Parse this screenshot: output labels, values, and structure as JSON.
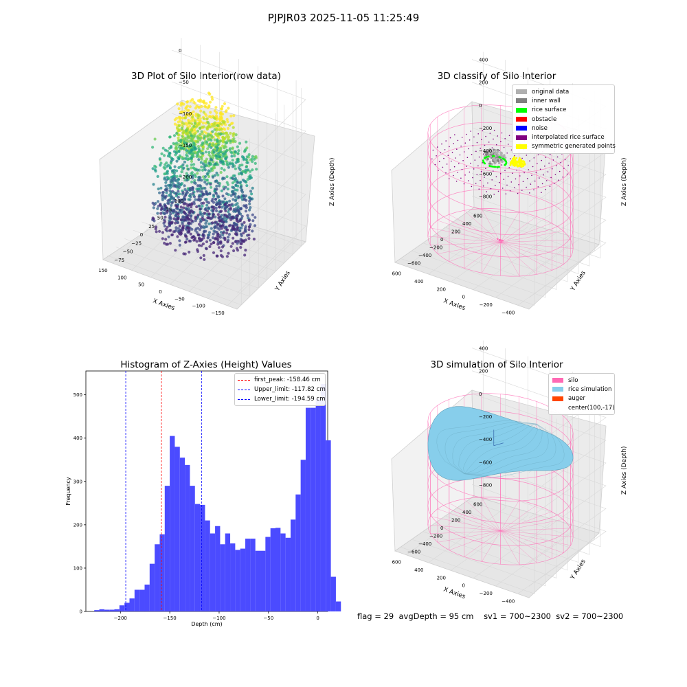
{
  "suptitle": "PJPJR03 2025-11-05 11:25:49",
  "colors": {
    "silo_wire": "#ff69b4",
    "rice_sim": "#87ceeb",
    "hist_bar": "#4b4bff",
    "classify_original": "#b0b0b0",
    "classify_inner_wall": "#808080",
    "classify_rice_surface": "#00ff00",
    "classify_obstacle": "#ff0000",
    "classify_noise": "#0000ff",
    "classify_interp": "#800080",
    "classify_symmetric": "#ffff00",
    "auger": "#ff4500"
  },
  "chart_data": [
    {
      "type": "scatter",
      "projection": "3d",
      "title": "3D Plot of Silo Interior(row data)",
      "xlabel": "X Axies",
      "ylabel": "Y Axies",
      "zlabel": "Z Axies (Depth)",
      "xticks": [
        "−150",
        "−100",
        "−50",
        "0",
        "50",
        "100",
        "150"
      ],
      "yticks": [
        "−75",
        "−50",
        "−25",
        "0",
        "25",
        "50",
        "75",
        "100"
      ],
      "zticks": [
        "−200",
        "−150",
        "−100",
        "−50",
        "0"
      ],
      "xlim": [
        -170,
        160
      ],
      "ylim": [
        -85,
        115
      ],
      "zlim": [
        -225,
        5
      ],
      "colormap": "viridis"
    },
    {
      "type": "scatter",
      "projection": "3d",
      "title": "3D classify of Silo Interior",
      "xlabel": "X Axies",
      "ylabel": "Y Axies",
      "zlabel": "Z Axies (Depth)",
      "xticks": [
        "−400",
        "−200",
        "0",
        "200",
        "400",
        "600"
      ],
      "yticks": [
        "−600",
        "−400",
        "−200",
        "0",
        "200",
        "400",
        "600"
      ],
      "zticks": [
        "−800",
        "−600",
        "−400",
        "−200",
        "0",
        "200",
        "400"
      ],
      "xlim": [
        -500,
        700
      ],
      "ylim": [
        -650,
        650
      ],
      "zlim": [
        -900,
        450
      ],
      "legend_position": "top-right",
      "legend": [
        {
          "label": "original data",
          "color": "#b0b0b0"
        },
        {
          "label": "inner wall",
          "color": "#808080"
        },
        {
          "label": "rice surface",
          "color": "#00ff00"
        },
        {
          "label": "obstacle",
          "color": "#ff0000"
        },
        {
          "label": "noise",
          "color": "#0000ff"
        },
        {
          "label": "interpolated rice surface",
          "color": "#800080"
        },
        {
          "label": "symmetric generated points",
          "color": "#ffff00"
        }
      ]
    },
    {
      "type": "bar",
      "subtype": "histogram",
      "title": "Histogram of Z-Axies (Height) Values",
      "xlabel": "Depth (cm)",
      "ylabel": "Frequency",
      "xlim": [
        -235,
        10
      ],
      "ylim": [
        0,
        555
      ],
      "xticks": [
        -200,
        -150,
        -100,
        -50,
        0
      ],
      "yticks": [
        0,
        100,
        200,
        300,
        400,
        500
      ],
      "bin_start": -226.5,
      "bin_width": 5.1,
      "values": [
        3,
        5,
        4,
        4,
        5,
        14,
        20,
        30,
        50,
        50,
        62,
        110,
        155,
        178,
        290,
        405,
        380,
        355,
        338,
        290,
        248,
        246,
        210,
        180,
        197,
        155,
        180,
        157,
        142,
        145,
        168,
        168,
        140,
        140,
        172,
        192,
        193,
        180,
        170,
        212,
        270,
        350,
        470,
        470,
        490,
        525,
        395,
        80,
        23
      ],
      "legend_position": "top-right",
      "vlines": [
        {
          "label": "first_peak: -158.46 cm",
          "x": -158.46,
          "color": "#ff0000"
        },
        {
          "label": "Upper_limit: -117.82 cm",
          "x": -117.82,
          "color": "#0000ff"
        },
        {
          "label": "Lower_limit: -194.59 cm",
          "x": -194.59,
          "color": "#0000ff"
        }
      ]
    },
    {
      "type": "area",
      "projection": "3d",
      "title": "3D simulation of Silo Interior",
      "xlabel": "X Axies",
      "ylabel": "Y Axies",
      "zlabel": "Z Axies (Depth)",
      "xticks": [
        "−400",
        "−200",
        "0",
        "200",
        "400",
        "600"
      ],
      "yticks": [
        "−600",
        "−400",
        "−200",
        "0",
        "200",
        "400",
        "600"
      ],
      "zticks": [
        "−800",
        "−600",
        "−400",
        "−200",
        "0",
        "200",
        "400"
      ],
      "xlim": [
        -500,
        700
      ],
      "ylim": [
        -650,
        650
      ],
      "zlim": [
        -900,
        450
      ],
      "legend_position": "top-right",
      "legend": [
        {
          "label": "silo",
          "color": "#ff69b4"
        },
        {
          "label": "rice simulation",
          "color": "#87ceeb"
        },
        {
          "label": "auger",
          "color": "#ff4500"
        },
        {
          "label": "center(100,-17)",
          "color": "none"
        }
      ]
    }
  ],
  "footer": {
    "flag": "flag = 29",
    "avg_depth": "avgDepth = 95 cm",
    "sv1": "sv1 = 700~2300",
    "sv2": "sv2 = 700~2300"
  }
}
